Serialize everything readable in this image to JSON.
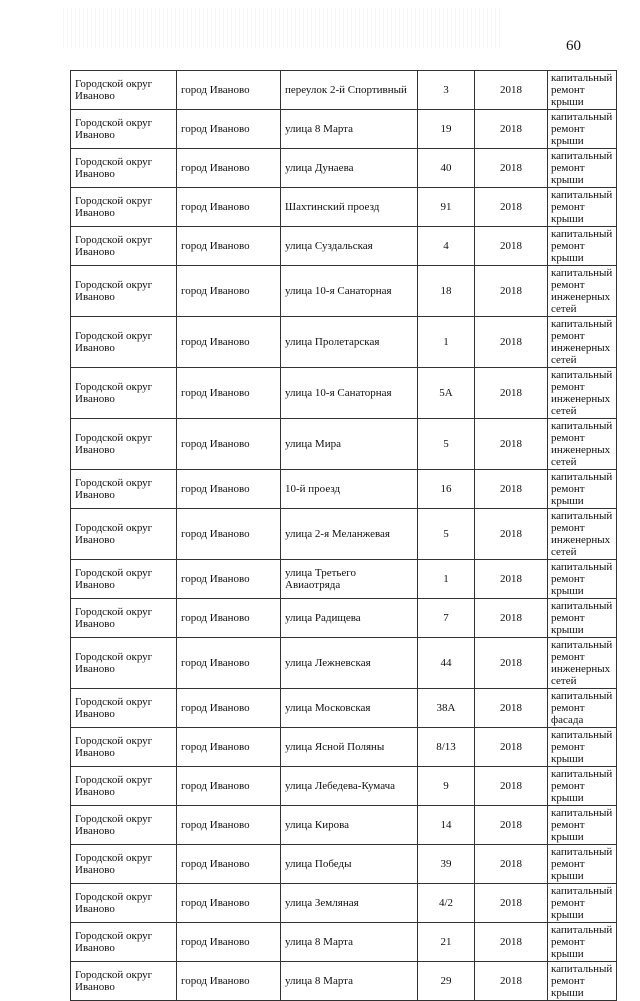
{
  "page_number": "60",
  "rows": [
    {
      "district": "Городской округ Иваново",
      "city": "город Иваново",
      "street": "переулок 2-й Спортивный",
      "house": "3",
      "year": "2018",
      "work": "капитальный ремонт крыши"
    },
    {
      "district": "Городской округ Иваново",
      "city": "город Иваново",
      "street": "улица 8 Марта",
      "house": "19",
      "year": "2018",
      "work": "капитальный ремонт крыши"
    },
    {
      "district": "Городской округ Иваново",
      "city": "город Иваново",
      "street": "улица Дунаева",
      "house": "40",
      "year": "2018",
      "work": "капитальный ремонт крыши"
    },
    {
      "district": "Городской округ Иваново",
      "city": "город Иваново",
      "street": "Шахтинский проезд",
      "house": "91",
      "year": "2018",
      "work": "капитальный ремонт крыши"
    },
    {
      "district": "Городской округ Иваново",
      "city": "город Иваново",
      "street": "улица Суздальская",
      "house": "4",
      "year": "2018",
      "work": "капитальный ремонт крыши"
    },
    {
      "district": "Городской округ Иваново",
      "city": "город Иваново",
      "street": "улица 10-я Санаторная",
      "house": "18",
      "year": "2018",
      "work": "капитальный ремонт инженерных сетей"
    },
    {
      "district": "Городской округ Иваново",
      "city": "город Иваново",
      "street": "улица Пролетарская",
      "house": "1",
      "year": "2018",
      "work": "капитальный ремонт инженерных сетей"
    },
    {
      "district": "Городской округ Иваново",
      "city": "город Иваново",
      "street": "улица 10-я Санаторная",
      "house": "5А",
      "year": "2018",
      "work": "капитальный ремонт инженерных сетей"
    },
    {
      "district": "Городской округ Иваново",
      "city": "город Иваново",
      "street": "улица Мира",
      "house": "5",
      "year": "2018",
      "work": "капитальный ремонт инженерных сетей"
    },
    {
      "district": "Городской округ Иваново",
      "city": "город Иваново",
      "street": "10-й проезд",
      "house": "16",
      "year": "2018",
      "work": "капитальный ремонт крыши"
    },
    {
      "district": "Городской округ Иваново",
      "city": "город Иваново",
      "street": "улица 2-я Меланжевая",
      "house": "5",
      "year": "2018",
      "work": "капитальный ремонт инженерных сетей"
    },
    {
      "district": "Городской округ Иваново",
      "city": "город Иваново",
      "street": "улица Третьего Авиаотряда",
      "house": "1",
      "year": "2018",
      "work": "капитальный ремонт крыши"
    },
    {
      "district": "Городской округ Иваново",
      "city": "город Иваново",
      "street": "улица Радищева",
      "house": "7",
      "year": "2018",
      "work": "капитальный ремонт крыши"
    },
    {
      "district": "Городской округ Иваново",
      "city": "город Иваново",
      "street": "улица Лежневская",
      "house": "44",
      "year": "2018",
      "work": "капитальный ремонт инженерных сетей"
    },
    {
      "district": "Городской округ Иваново",
      "city": "город Иваново",
      "street": "улица Московская",
      "house": "38А",
      "year": "2018",
      "work": "капитальный ремонт фасада"
    },
    {
      "district": "Городской округ Иваново",
      "city": "город Иваново",
      "street": "улица Ясной Поляны",
      "house": "8/13",
      "year": "2018",
      "work": "капитальный ремонт крыши"
    },
    {
      "district": "Городской округ Иваново",
      "city": "город Иваново",
      "street": "улица Лебедева-Кумача",
      "house": "9",
      "year": "2018",
      "work": "капитальный ремонт крыши"
    },
    {
      "district": "Городской округ Иваново",
      "city": "город Иваново",
      "street": "улица Кирова",
      "house": "14",
      "year": "2018",
      "work": "капитальный ремонт крыши"
    },
    {
      "district": "Городской округ Иваново",
      "city": "город Иваново",
      "street": "улица Победы",
      "house": "39",
      "year": "2018",
      "work": "капитальный ремонт крыши"
    },
    {
      "district": "Городской округ Иваново",
      "city": "город Иваново",
      "street": "улица Земляная",
      "house": "4/2",
      "year": "2018",
      "work": "капитальный ремонт крыши"
    },
    {
      "district": "Городской округ Иваново",
      "city": "город Иваново",
      "street": "улица 8 Марта",
      "house": "21",
      "year": "2018",
      "work": "капитальный ремонт крыши"
    },
    {
      "district": "Городской округ Иваново",
      "city": "город Иваново",
      "street": "улица 8 Марта",
      "house": "29",
      "year": "2018",
      "work": "капитальный ремонт крыши"
    }
  ]
}
